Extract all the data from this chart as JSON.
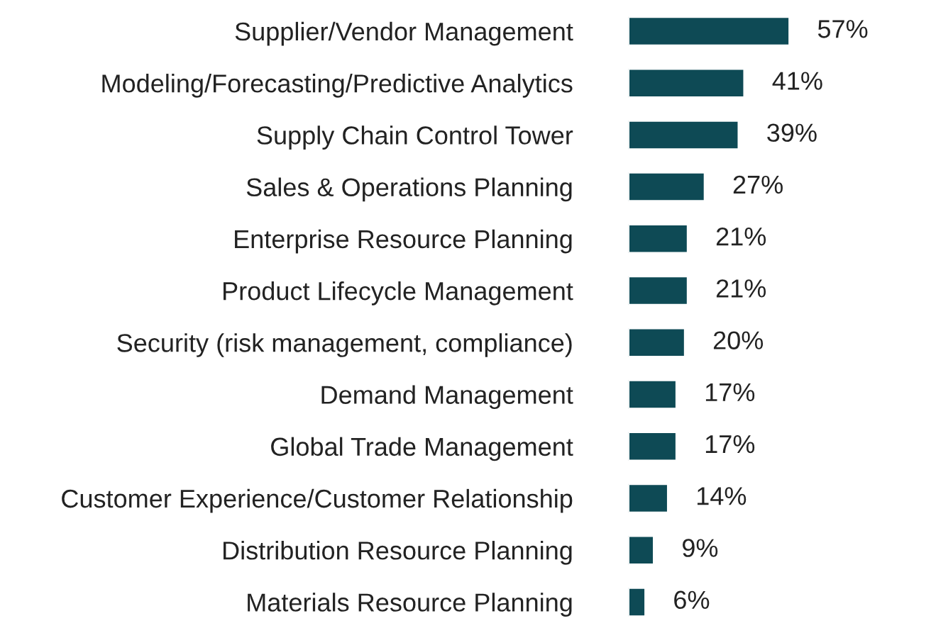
{
  "chart_data": {
    "type": "bar",
    "orientation": "horizontal",
    "data_labels": true,
    "color": "#0e4a55",
    "categories": [
      "Supplier/Vendor Management",
      "Modeling/Forecasting/Predictive Analytics",
      "Supply Chain Control Tower",
      "Sales & Operations Planning",
      "Enterprise Resource Planning",
      "Product Lifecycle Management",
      "Security (risk management, compliance)",
      "Demand Management",
      "Global Trade Management",
      "Customer Experience/Customer Relationship",
      "Distribution Resource Planning",
      "Materials Resource Planning"
    ],
    "values": [
      57,
      41,
      39,
      27,
      21,
      21,
      20,
      17,
      17,
      14,
      9,
      6
    ],
    "value_labels": [
      "57%",
      "41%",
      "39%",
      "27%",
      "21%",
      "21%",
      "20%",
      "17%",
      "17%",
      "14%",
      "9%",
      "6%"
    ]
  }
}
